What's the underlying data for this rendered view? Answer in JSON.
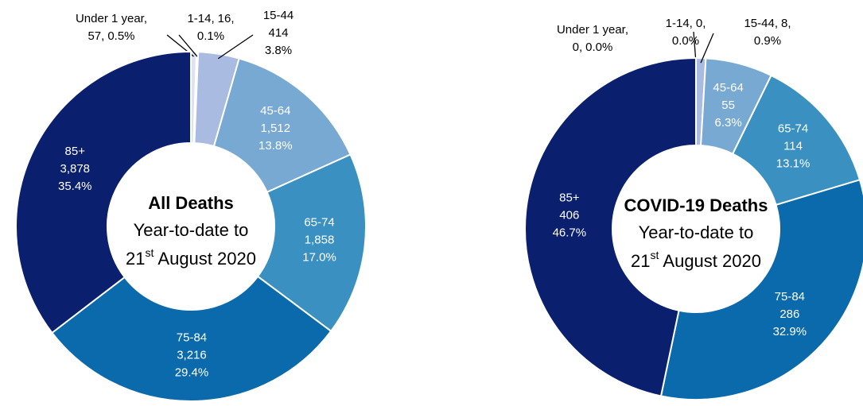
{
  "chart_data": [
    {
      "type": "donut",
      "center_title": "All Deaths",
      "center_subtitle": "Year-to-date to",
      "center_date": {
        "day": "21",
        "suffix": "st",
        "rest": "August 2020"
      },
      "separator": ",",
      "categories": [
        "Under 1 year",
        "1-14",
        "15-44",
        "45-64",
        "65-74",
        "75-84",
        "85+"
      ],
      "values": [
        57,
        16,
        414,
        1512,
        1858,
        3216,
        3878
      ],
      "value_labels": [
        "57",
        "16",
        "414",
        "1,512",
        "1,858",
        "3,216",
        "3,878"
      ],
      "shares": [
        0.5,
        0.1,
        3.8,
        13.8,
        17.0,
        29.4,
        35.4
      ],
      "share_labels": [
        "0.5%",
        "0.1%",
        "3.8%",
        "13.8%",
        "17.0%",
        "29.4%",
        "35.4%"
      ],
      "colors": [
        "#dde3f0",
        "#f2f4fa",
        "#a9bbe0",
        "#78a9d3",
        "#3a90c1",
        "#0b6aab",
        "#0b1f6f"
      ]
    },
    {
      "type": "donut",
      "center_title": "COVID-19 Deaths",
      "center_subtitle": "Year-to-date to",
      "center_date": {
        "day": "21",
        "suffix": "st",
        "rest": "August 2020"
      },
      "separator": ",",
      "categories": [
        "Under 1 year",
        "1-14",
        "15-44",
        "45-64",
        "65-74",
        "75-84",
        "85+"
      ],
      "values": [
        0,
        0,
        8,
        55,
        114,
        286,
        406
      ],
      "value_labels": [
        "0",
        "0",
        "8",
        "55",
        "114",
        "286",
        "406"
      ],
      "shares": [
        0.0,
        0.0,
        0.9,
        6.3,
        13.1,
        32.9,
        46.7
      ],
      "share_labels": [
        "0.0%",
        "0.0%",
        "0.9%",
        "6.3%",
        "13.1%",
        "32.9%",
        "46.7%"
      ],
      "colors": [
        "#dde3f0",
        "#f2f4fa",
        "#a9bbe0",
        "#78a9d3",
        "#3a90c1",
        "#0b6aab",
        "#0b1f6f"
      ]
    }
  ]
}
